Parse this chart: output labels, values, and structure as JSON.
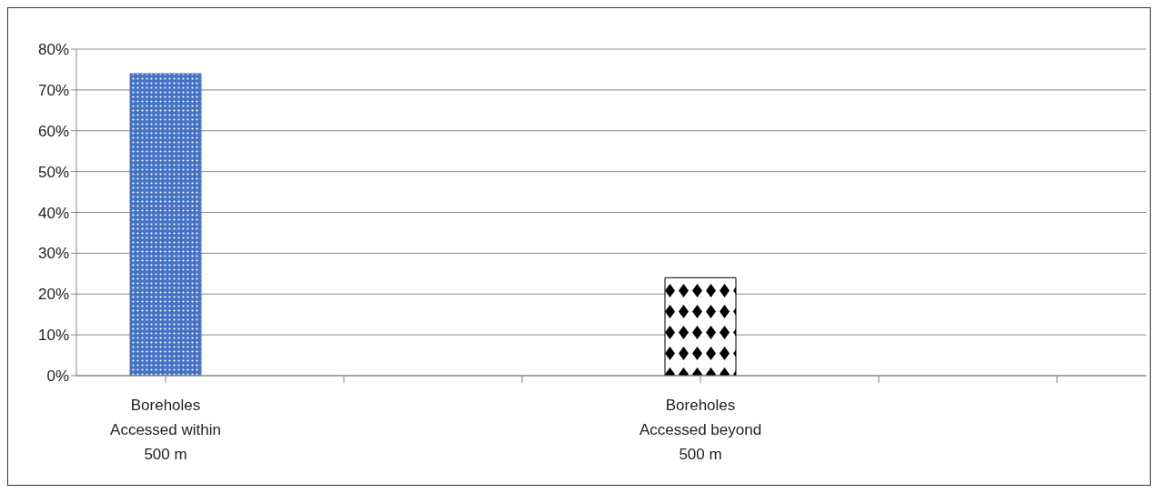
{
  "chart_data": {
    "type": "bar",
    "categories": [
      "Boreholes Accessed within 500 m",
      null,
      null,
      "Boreholes Accessed beyond 500 m",
      null,
      null
    ],
    "values": [
      74,
      null,
      null,
      24,
      null,
      null
    ],
    "colors": [
      "#4472c4",
      null,
      null,
      "#000000",
      null,
      null
    ],
    "ylim": [
      0,
      80
    ],
    "yticks": [
      {
        "value": 0,
        "label": "0%"
      },
      {
        "value": 10,
        "label": "10%"
      },
      {
        "value": 20,
        "label": "20%"
      },
      {
        "value": 30,
        "label": "30%"
      },
      {
        "value": 40,
        "label": "40%"
      },
      {
        "value": 50,
        "label": "50%"
      },
      {
        "value": 60,
        "label": "60%"
      },
      {
        "value": 70,
        "label": "70%"
      },
      {
        "value": 80,
        "label": "80%"
      }
    ],
    "grid": "y",
    "legend": false
  }
}
